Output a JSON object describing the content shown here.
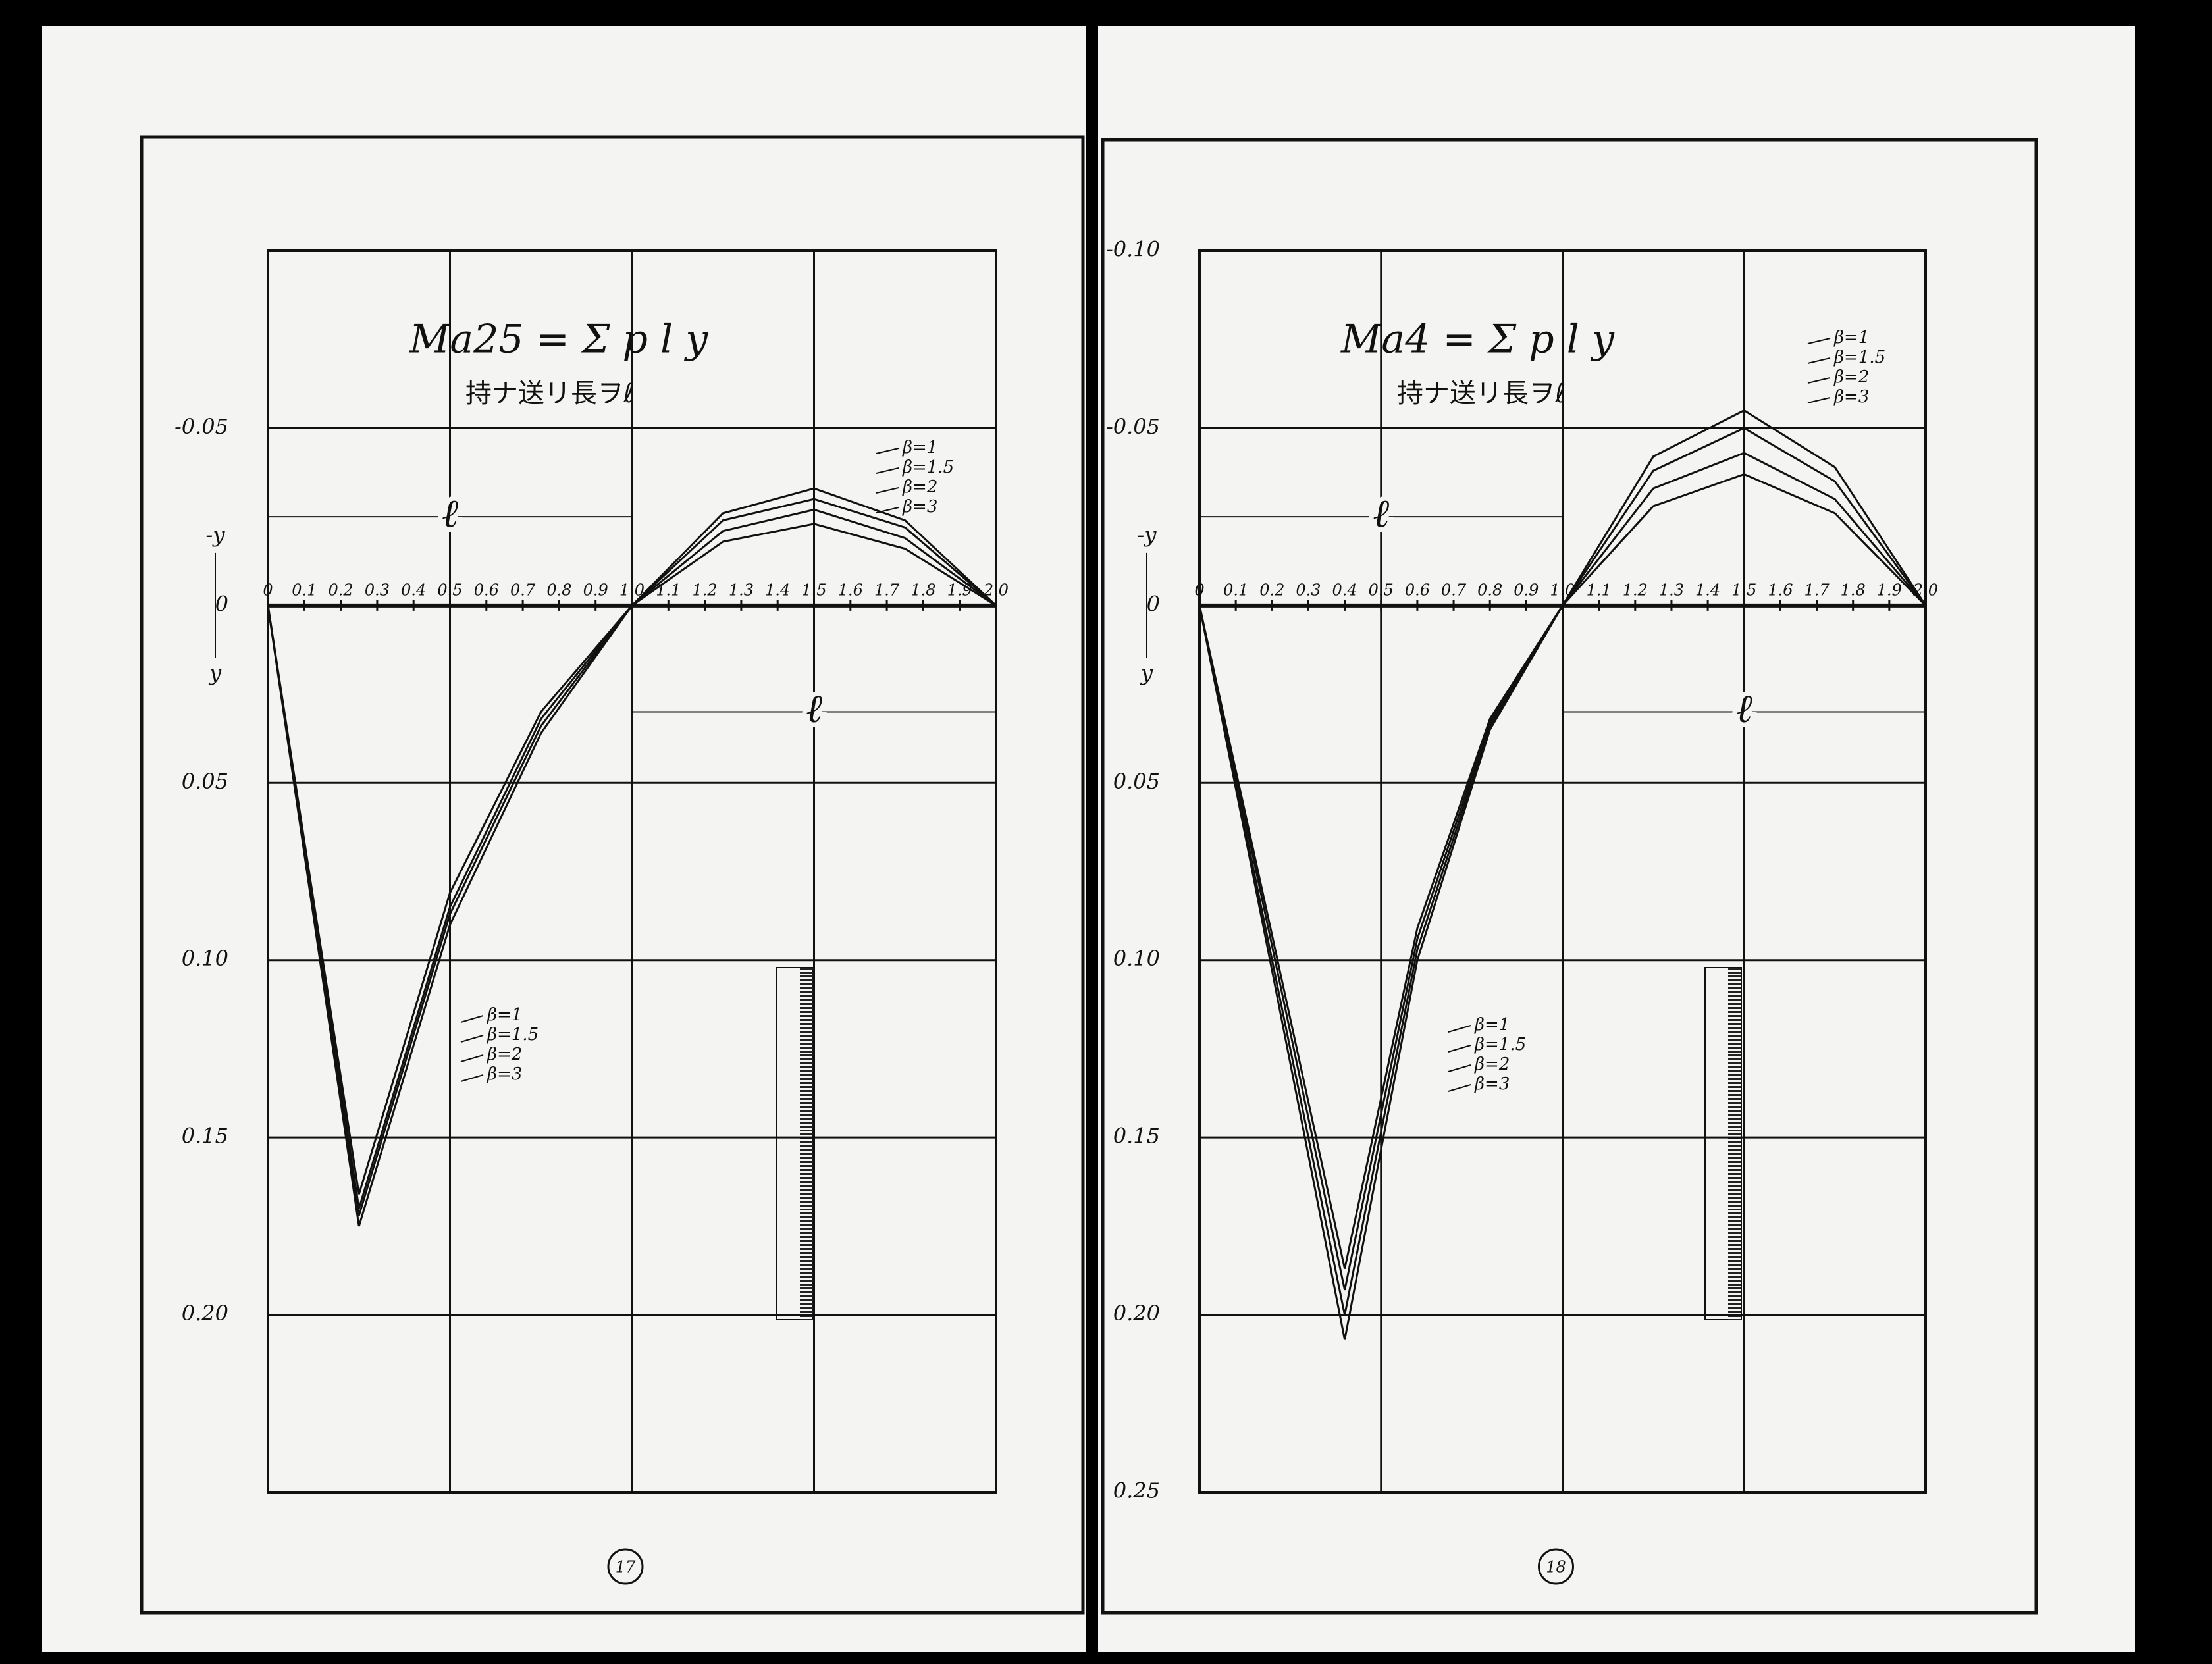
{
  "chart_data": [
    {
      "type": "line",
      "title": "Ma25 = Σ p l y",
      "subtitle": "持ナ送リ長ヲℓ",
      "x": [
        0,
        0.25,
        0.5,
        0.75,
        1.0,
        1.25,
        1.5,
        1.75,
        2.0
      ],
      "series": [
        {
          "name": "β=1",
          "color": "#111111",
          "values": [
            0,
            0.175,
            0.09,
            0.036,
            0,
            -0.018,
            -0.023,
            -0.016,
            0
          ]
        },
        {
          "name": "β=1.5",
          "color": "#111111",
          "values": [
            0,
            0.172,
            0.087,
            0.034,
            0,
            -0.021,
            -0.027,
            -0.019,
            0
          ]
        },
        {
          "name": "β=2",
          "color": "#111111",
          "values": [
            0,
            0.17,
            0.085,
            0.032,
            0,
            -0.024,
            -0.03,
            -0.022,
            0
          ]
        },
        {
          "name": "β=3",
          "color": "#111111",
          "values": [
            0,
            0.166,
            0.081,
            0.03,
            0,
            -0.026,
            -0.033,
            -0.024,
            0
          ]
        }
      ],
      "xlim": [
        0,
        2.0
      ],
      "ylim": [
        -0.1,
        0.25
      ],
      "xticks": [
        0,
        0.1,
        0.2,
        0.3,
        0.4,
        0.5,
        0.6,
        0.7,
        0.8,
        0.9,
        {
          "value": 1,
          "label": "1.0"
        },
        1.1,
        1.2,
        1.3,
        1.4,
        1.5,
        1.6,
        1.7,
        1.8,
        1.9,
        {
          "value": 2,
          "label": "2.0"
        }
      ],
      "yticks": [
        -0.05,
        0,
        0.05,
        {
          "value": 0.1,
          "label": "0.10"
        },
        0.15,
        {
          "value": 0.2,
          "label": "0.20"
        }
      ],
      "y_axis_labels": [
        "-y",
        "y"
      ],
      "span_label": "ℓ",
      "page_number": "17"
    },
    {
      "type": "line",
      "title": "Ma4 = Σ p l y",
      "subtitle": "持ナ送リ長ヲℓ",
      "x": [
        0,
        0.2,
        0.4,
        0.6,
        0.8,
        1.0,
        1.25,
        1.5,
        1.75,
        2.0
      ],
      "series": [
        {
          "name": "β=1",
          "color": "#111111",
          "values": [
            0,
            0.103,
            0.207,
            0.1,
            0.035,
            0,
            -0.028,
            -0.037,
            -0.026,
            0
          ]
        },
        {
          "name": "β=1.5",
          "color": "#111111",
          "values": [
            0,
            0.1,
            0.2,
            0.097,
            0.034,
            0,
            -0.033,
            -0.043,
            -0.03,
            0
          ]
        },
        {
          "name": "β=2",
          "color": "#111111",
          "values": [
            0,
            0.096,
            0.193,
            0.094,
            0.033,
            0,
            -0.038,
            -0.05,
            -0.035,
            0
          ]
        },
        {
          "name": "β=3",
          "color": "#111111",
          "values": [
            0,
            0.093,
            0.187,
            0.091,
            0.032,
            0,
            -0.042,
            -0.055,
            -0.039,
            0
          ]
        }
      ],
      "xlim": [
        0,
        2.0
      ],
      "ylim": [
        -0.1,
        0.25
      ],
      "xticks": [
        0,
        0.1,
        0.2,
        0.3,
        0.4,
        0.5,
        0.6,
        0.7,
        0.8,
        0.9,
        {
          "value": 1,
          "label": "1.0"
        },
        1.1,
        1.2,
        1.3,
        1.4,
        1.5,
        1.6,
        1.7,
        1.8,
        1.9,
        {
          "value": 2,
          "label": "2.0"
        }
      ],
      "yticks": [
        {
          "value": -0.1,
          "label": "-0.10"
        },
        -0.05,
        0,
        0.05,
        {
          "value": 0.1,
          "label": "0.10"
        },
        0.15,
        {
          "value": 0.2,
          "label": "0.20"
        },
        0.25
      ],
      "y_axis_labels": [
        "-y",
        "y"
      ],
      "span_label": "ℓ",
      "page_number": "18"
    }
  ]
}
